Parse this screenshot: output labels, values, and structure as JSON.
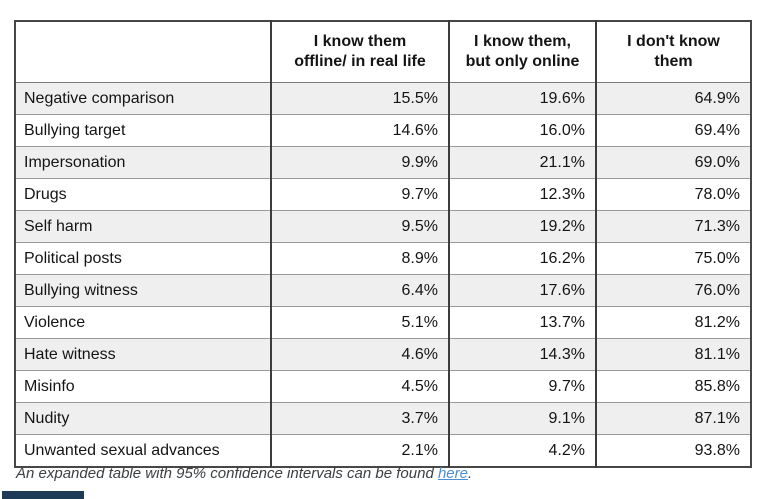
{
  "chart_data": {
    "type": "table",
    "columns": [
      {
        "label": "I know them offline/ in real life",
        "line1": "I know them",
        "line2": "offline/ in real life"
      },
      {
        "label": "I know them, but only online",
        "line1": "I know them,",
        "line2": "but only online"
      },
      {
        "label": "I don't know them",
        "line1": "I don't know",
        "line2": "them"
      }
    ],
    "rows": [
      {
        "label": "Negative comparison",
        "values": [
          "15.5%",
          "19.6%",
          "64.9%"
        ]
      },
      {
        "label": "Bullying target",
        "values": [
          "14.6%",
          "16.0%",
          "69.4%"
        ]
      },
      {
        "label": "Impersonation",
        "values": [
          "9.9%",
          "21.1%",
          "69.0%"
        ]
      },
      {
        "label": "Drugs",
        "values": [
          "9.7%",
          "12.3%",
          "78.0%"
        ]
      },
      {
        "label": "Self harm",
        "values": [
          "9.5%",
          "19.2%",
          "71.3%"
        ]
      },
      {
        "label": "Political posts",
        "values": [
          "8.9%",
          "16.2%",
          "75.0%"
        ]
      },
      {
        "label": "Bullying witness",
        "values": [
          "6.4%",
          "17.6%",
          "76.0%"
        ]
      },
      {
        "label": "Violence",
        "values": [
          "5.1%",
          "13.7%",
          "81.2%"
        ]
      },
      {
        "label": "Hate witness",
        "values": [
          "4.6%",
          "14.3%",
          "81.1%"
        ]
      },
      {
        "label": "Misinfo",
        "values": [
          "4.5%",
          "9.7%",
          "85.8%"
        ]
      },
      {
        "label": "Nudity",
        "values": [
          "3.7%",
          "9.1%",
          "87.1%"
        ]
      },
      {
        "label": "Unwanted sexual advances",
        "values": [
          "2.1%",
          "4.2%",
          "93.8%"
        ]
      }
    ]
  },
  "caption": {
    "prefix": "An expanded table with 95% confidence intervals can be found ",
    "link_label": "here",
    "suffix": "."
  },
  "colors": {
    "alt_row_bg": "#efefef",
    "border_dark": "#474747",
    "border_light": "#9a9a9a",
    "link_blue": "#4e8fd0",
    "partial_element_navy": "#1d3a57"
  }
}
